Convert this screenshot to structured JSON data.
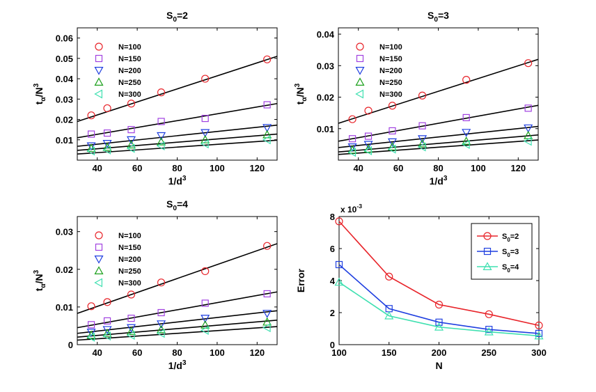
{
  "chart_data": [
    {
      "type": "scatter",
      "id": "s0-2",
      "title": "S_0=2",
      "xlabel": "1/d^3",
      "ylabel": "t_α/N^3",
      "xlim": [
        30,
        130
      ],
      "ylim": [
        0,
        0.065
      ],
      "xticks": [
        40,
        60,
        80,
        100,
        120
      ],
      "yticks": [
        0.01,
        0.02,
        0.03,
        0.04,
        0.05,
        0.06
      ],
      "yticklabels": [
        "0.01",
        "0.02",
        "0.03",
        "0.04",
        "0.05",
        "0.06"
      ],
      "x": [
        37,
        45,
        57,
        72,
        94,
        125
      ],
      "series": [
        {
          "name": "N=100",
          "marker": "circle",
          "color": "#e8242a",
          "values": [
            0.022,
            0.0255,
            0.0278,
            0.0333,
            0.04,
            0.0495
          ],
          "fit": [
            [
              30,
              0.019
            ],
            [
              130,
              0.051
            ]
          ]
        },
        {
          "name": "N=150",
          "marker": "square",
          "color": "#a040e0",
          "values": [
            0.0128,
            0.0133,
            0.015,
            0.019,
            0.0205,
            0.0272
          ],
          "fit": [
            [
              30,
              0.011
            ],
            [
              130,
              0.0278
            ]
          ]
        },
        {
          "name": "N=200",
          "marker": "triangle-down",
          "color": "#1f3fe0",
          "values": [
            0.007,
            0.0082,
            0.01,
            0.012,
            0.0135,
            0.016
          ],
          "fit": [
            [
              30,
              0.0068
            ],
            [
              130,
              0.0172
            ]
          ]
        },
        {
          "name": "N=250",
          "marker": "triangle-up",
          "color": "#1ca01c",
          "values": [
            0.0058,
            0.0063,
            0.0075,
            0.009,
            0.01,
            0.0125
          ],
          "fit": [
            [
              30,
              0.0048
            ],
            [
              130,
              0.0128
            ]
          ]
        },
        {
          "name": "N=300",
          "marker": "triangle-left",
          "color": "#3ee0b0",
          "values": [
            0.0045,
            0.005,
            0.0058,
            0.007,
            0.008,
            0.01
          ],
          "fit": [
            [
              30,
              0.003
            ],
            [
              130,
              0.0098
            ]
          ]
        }
      ]
    },
    {
      "type": "scatter",
      "id": "s0-3",
      "title": "S_0=3",
      "xlabel": "1/d^3",
      "ylabel": "t_α/N^3",
      "xlim": [
        30,
        130
      ],
      "ylim": [
        0,
        0.042
      ],
      "xticks": [
        40,
        60,
        80,
        100,
        120
      ],
      "yticks": [
        0.01,
        0.02,
        0.03,
        0.04
      ],
      "yticklabels": [
        "0.01",
        "0.02",
        "0.03",
        "0.04"
      ],
      "x": [
        37,
        45,
        57,
        72,
        94,
        125
      ],
      "series": [
        {
          "name": "N=100",
          "marker": "circle",
          "color": "#e8242a",
          "values": [
            0.013,
            0.0157,
            0.0173,
            0.0205,
            0.0255,
            0.0308
          ],
          "fit": [
            [
              30,
              0.0117
            ],
            [
              130,
              0.032
            ]
          ]
        },
        {
          "name": "N=150",
          "marker": "square",
          "color": "#a040e0",
          "values": [
            0.0068,
            0.0076,
            0.0093,
            0.0109,
            0.0135,
            0.0165
          ],
          "fit": [
            [
              30,
              0.006
            ],
            [
              130,
              0.0174
            ]
          ]
        },
        {
          "name": "N=200",
          "marker": "triangle-down",
          "color": "#1f3fe0",
          "values": [
            0.0042,
            0.005,
            0.0058,
            0.0068,
            0.0088,
            0.0102
          ],
          "fit": [
            [
              30,
              0.004
            ],
            [
              130,
              0.0107
            ]
          ]
        },
        {
          "name": "N=250",
          "marker": "triangle-up",
          "color": "#1ca01c",
          "values": [
            0.0032,
            0.0035,
            0.0042,
            0.0052,
            0.006,
            0.0078
          ],
          "fit": [
            [
              30,
              0.0026
            ],
            [
              130,
              0.008
            ]
          ]
        },
        {
          "name": "N=300",
          "marker": "triangle-left",
          "color": "#3ee0b0",
          "values": [
            0.0025,
            0.003,
            0.0035,
            0.0042,
            0.005,
            0.006
          ],
          "fit": [
            [
              30,
              0.0018
            ],
            [
              130,
              0.0064
            ]
          ]
        }
      ]
    },
    {
      "type": "scatter",
      "id": "s0-4",
      "title": "S_0=4",
      "xlabel": "1/d^3",
      "ylabel": "t_α/N^3",
      "xlim": [
        30,
        130
      ],
      "ylim": [
        0,
        0.034
      ],
      "xticks": [
        40,
        60,
        80,
        100,
        120
      ],
      "yticks": [
        0,
        0.01,
        0.02,
        0.03
      ],
      "yticklabels": [
        "0",
        "0.01",
        "0.02",
        "0.03"
      ],
      "x": [
        37,
        45,
        57,
        72,
        94,
        125
      ],
      "series": [
        {
          "name": "N=100",
          "marker": "circle",
          "color": "#e8242a",
          "values": [
            0.0102,
            0.0113,
            0.0133,
            0.0165,
            0.0195,
            0.0262
          ],
          "fit": [
            [
              30,
              0.0083
            ],
            [
              130,
              0.0268
            ]
          ]
        },
        {
          "name": "N=150",
          "marker": "square",
          "color": "#a040e0",
          "values": [
            0.0053,
            0.0063,
            0.007,
            0.0085,
            0.011,
            0.0135
          ],
          "fit": [
            [
              30,
              0.0045
            ],
            [
              130,
              0.014
            ]
          ]
        },
        {
          "name": "N=200",
          "marker": "triangle-down",
          "color": "#1f3fe0",
          "values": [
            0.0033,
            0.004,
            0.0045,
            0.0055,
            0.007,
            0.0083
          ],
          "fit": [
            [
              30,
              0.003
            ],
            [
              130,
              0.009
            ]
          ]
        },
        {
          "name": "N=250",
          "marker": "triangle-up",
          "color": "#1ca01c",
          "values": [
            0.0025,
            0.003,
            0.0035,
            0.004,
            0.0052,
            0.006
          ],
          "fit": [
            [
              30,
              0.002
            ],
            [
              130,
              0.0065
            ]
          ]
        },
        {
          "name": "N=300",
          "marker": "triangle-left",
          "color": "#3ee0b0",
          "values": [
            0.002,
            0.0023,
            0.0025,
            0.003,
            0.0038,
            0.0045
          ],
          "fit": [
            [
              30,
              0.0012
            ],
            [
              130,
              0.0048
            ]
          ]
        }
      ]
    },
    {
      "type": "line",
      "id": "error",
      "title": "",
      "xlabel": "N",
      "ylabel": "Error",
      "multiplier_label": "x 10^-3",
      "xlim": [
        100,
        300
      ],
      "ylim": [
        0,
        8
      ],
      "xticks": [
        100,
        150,
        200,
        250,
        300
      ],
      "yticks": [
        0,
        2,
        4,
        6,
        8
      ],
      "yticklabels": [
        "0",
        "2",
        "4",
        "6",
        "8"
      ],
      "x": [
        100,
        150,
        200,
        250,
        300
      ],
      "legend_position": "top-right",
      "series": [
        {
          "name": "S_0=2",
          "marker": "circle",
          "color": "#e8242a",
          "values": [
            7.7,
            4.25,
            2.5,
            1.9,
            1.2
          ]
        },
        {
          "name": "S_0=3",
          "marker": "square",
          "color": "#1f3fe0",
          "values": [
            5.0,
            2.25,
            1.4,
            0.95,
            0.7
          ]
        },
        {
          "name": "S_0=4",
          "marker": "triangle-up",
          "color": "#3ee0b0",
          "values": [
            3.9,
            1.8,
            1.1,
            0.8,
            0.55
          ]
        }
      ]
    }
  ]
}
